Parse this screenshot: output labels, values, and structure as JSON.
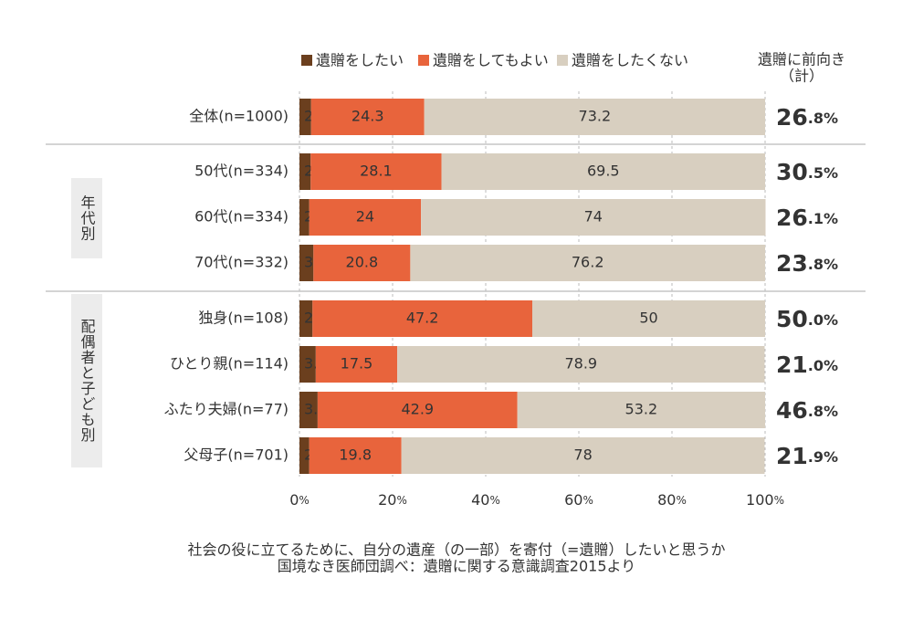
{
  "chart_data": {
    "type": "stacked-bar-horizontal",
    "categories": [
      "全体(n=1000)",
      "50代(n=334)",
      "60代(n=334)",
      "70代(n=332)",
      "独身(n=108)",
      "ひとり親(n=114)",
      "ふたり夫婦(n=77)",
      "父母子(n=701)"
    ],
    "groups": [
      "年代別",
      "配偶者と子ども別"
    ],
    "series": [
      {
        "name": "遺贈をしたい",
        "color": "#6b3f1e",
        "values": [
          2.5,
          2.4,
          2.1,
          3,
          2.8,
          3.5,
          3.9,
          2.1
        ]
      },
      {
        "name": "遺贈をしてもよい",
        "color": "#e8643c",
        "values": [
          24.3,
          28.1,
          24,
          20.8,
          47.2,
          17.5,
          42.9,
          19.8
        ]
      },
      {
        "name": "遺贈をしたくない",
        "color": "#d8cfc0",
        "values": [
          73.2,
          69.5,
          74,
          76.2,
          50,
          78.9,
          53.2,
          78
        ]
      }
    ],
    "totals": {
      "title": [
        "遺贈に前向き",
        "（計）"
      ],
      "color": "#f07d1a",
      "values": [
        26.8,
        30.5,
        26.1,
        23.8,
        50.0,
        21.0,
        46.8,
        21.9
      ],
      "value_labels": [
        "26.8%",
        "30.5%",
        "26.1%",
        "23.8%",
        "50.0%",
        "21.0%",
        "46.8%",
        "21.9%"
      ]
    },
    "xlim": [
      0,
      100
    ],
    "xticks": [
      {
        "value": 0,
        "label": "0%"
      },
      {
        "value": 20,
        "label": "20%"
      },
      {
        "value": 40,
        "label": "40%"
      },
      {
        "value": 60,
        "label": "60%"
      },
      {
        "value": 80,
        "label": "80%"
      },
      {
        "value": 100,
        "label": "100%"
      }
    ],
    "notes": [
      "社会の役に立てるために、自分の遺産（の一部）を寄付（=遺贈）したいと思うか",
      "国境なき医師団調べ：遺贈に関する意識調査2015より"
    ]
  }
}
